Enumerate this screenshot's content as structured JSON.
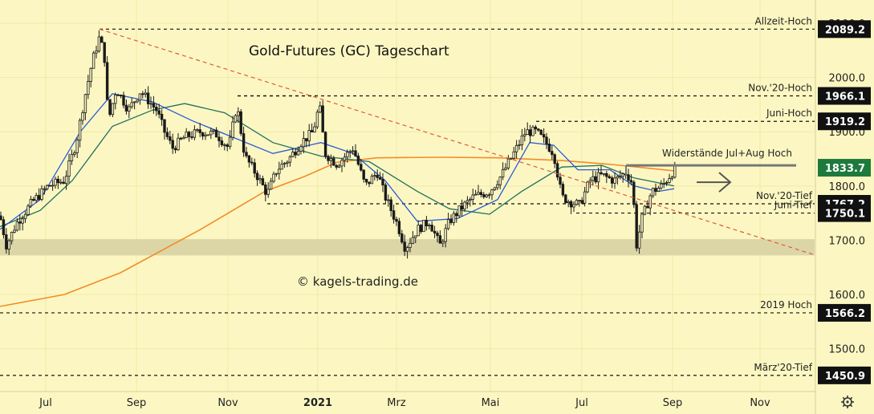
{
  "colors": {
    "background": "#fcf7c2",
    "grid": "#f0e9a8",
    "candle_up": "#1a1a1a",
    "candle_down": "#1a1a1a",
    "ma200": "#f28c28",
    "ma50": "#1f6f5f",
    "ma20": "#2a5bd7",
    "trendline": "#e05a3a",
    "zone": "#d8d1a4",
    "tag_dark": "#111111",
    "tag_green": "#1e7a3c",
    "resistance_line": "#777777"
  },
  "chart_data": {
    "type": "candlestick",
    "title": "Gold-Futures (GC) Tageschart",
    "watermark": "© kagels-trading.de",
    "ylim": [
      1430,
      2100
    ],
    "xlim": [
      0,
      1015
    ],
    "x_ticks": [
      {
        "label": "Jul",
        "x": 57,
        "bold": false
      },
      {
        "label": "Sep",
        "x": 170,
        "bold": false
      },
      {
        "label": "Nov",
        "x": 284,
        "bold": false
      },
      {
        "label": "2021",
        "x": 396,
        "bold": true
      },
      {
        "label": "Mrz",
        "x": 494,
        "bold": false
      },
      {
        "label": "Mai",
        "x": 611,
        "bold": false
      },
      {
        "label": "Jul",
        "x": 725,
        "bold": false
      },
      {
        "label": "Sep",
        "x": 838,
        "bold": false
      },
      {
        "label": "Nov",
        "x": 947,
        "bold": false
      }
    ],
    "y_ticks": [
      "2100.0",
      "2000.0",
      "1900.0",
      "1800.0",
      "1700.0",
      "1600.0",
      "1500.0"
    ],
    "levels": [
      {
        "label": "Allzeit-Hoch",
        "value": 2089.2,
        "tag": "2089.2"
      },
      {
        "label": "Nov.'20-Hoch",
        "value": 1966.1,
        "tag": "1966.1"
      },
      {
        "label": "Juni-Hoch",
        "value": 1919.2,
        "tag": "1919.2"
      },
      {
        "label": "Nov.'20-Tief",
        "value": 1767.2,
        "tag": "1767.2"
      },
      {
        "label": "Juni-Tief",
        "value": 1750.1,
        "tag": "1750.1"
      },
      {
        "label": "2019 Hoch",
        "value": 1566.2,
        "tag": "1566.2"
      },
      {
        "label": "März'20-Tief",
        "value": 1450.9,
        "tag": "1450.9"
      }
    ],
    "current_price": {
      "value": 1833.7,
      "tag": "1833.7"
    },
    "resistance": {
      "label": "Widerstände Jul+Aug Hoch",
      "value": 1838
    },
    "support_zone": {
      "low": 1672,
      "high": 1702
    },
    "trendline": {
      "x0": 124,
      "v0": 2089.2,
      "x1": 1015,
      "v1": 1673
    },
    "ma200": [
      [
        0,
        1578
      ],
      [
        80,
        1600
      ],
      [
        150,
        1640
      ],
      [
        250,
        1720
      ],
      [
        330,
        1790
      ],
      [
        380,
        1818
      ],
      [
        420,
        1844
      ],
      [
        470,
        1852
      ],
      [
        550,
        1853
      ],
      [
        620,
        1852
      ],
      [
        700,
        1847
      ],
      [
        760,
        1840
      ],
      [
        840,
        1828
      ]
    ],
    "ma50": [
      [
        0,
        1725
      ],
      [
        50,
        1755
      ],
      [
        90,
        1810
      ],
      [
        140,
        1910
      ],
      [
        190,
        1940
      ],
      [
        230,
        1952
      ],
      [
        280,
        1935
      ],
      [
        340,
        1880
      ],
      [
        400,
        1855
      ],
      [
        460,
        1845
      ],
      [
        520,
        1790
      ],
      [
        560,
        1758
      ],
      [
        610,
        1748
      ],
      [
        650,
        1790
      ],
      [
        700,
        1835
      ],
      [
        750,
        1838
      ],
      [
        790,
        1815
      ],
      [
        840,
        1800
      ]
    ],
    "ma20": [
      [
        0,
        1720
      ],
      [
        50,
        1775
      ],
      [
        100,
        1900
      ],
      [
        140,
        1970
      ],
      [
        190,
        1955
      ],
      [
        240,
        1920
      ],
      [
        290,
        1890
      ],
      [
        340,
        1860
      ],
      [
        400,
        1880
      ],
      [
        440,
        1860
      ],
      [
        480,
        1810
      ],
      [
        520,
        1735
      ],
      [
        570,
        1740
      ],
      [
        620,
        1775
      ],
      [
        660,
        1880
      ],
      [
        690,
        1875
      ],
      [
        720,
        1830
      ],
      [
        760,
        1830
      ],
      [
        790,
        1800
      ],
      [
        820,
        1790
      ],
      [
        840,
        1795
      ]
    ],
    "price_path": [
      [
        0,
        1745
      ],
      [
        8,
        1690
      ],
      [
        20,
        1730
      ],
      [
        40,
        1770
      ],
      [
        60,
        1800
      ],
      [
        80,
        1810
      ],
      [
        95,
        1880
      ],
      [
        105,
        1960
      ],
      [
        115,
        2030
      ],
      [
        124,
        2075
      ],
      [
        130,
        2040
      ],
      [
        135,
        1920
      ],
      [
        145,
        1980
      ],
      [
        160,
        1940
      ],
      [
        175,
        1975
      ],
      [
        195,
        1940
      ],
      [
        205,
        1900
      ],
      [
        215,
        1870
      ],
      [
        230,
        1890
      ],
      [
        250,
        1900
      ],
      [
        270,
        1895
      ],
      [
        285,
        1870
      ],
      [
        295,
        1950
      ],
      [
        305,
        1855
      ],
      [
        320,
        1820
      ],
      [
        333,
        1785
      ],
      [
        345,
        1830
      ],
      [
        360,
        1850
      ],
      [
        375,
        1880
      ],
      [
        390,
        1900
      ],
      [
        398,
        1950
      ],
      [
        405,
        1860
      ],
      [
        420,
        1840
      ],
      [
        440,
        1870
      ],
      [
        455,
        1800
      ],
      [
        470,
        1825
      ],
      [
        480,
        1780
      ],
      [
        495,
        1730
      ],
      [
        505,
        1685
      ],
      [
        520,
        1720
      ],
      [
        535,
        1735
      ],
      [
        548,
        1690
      ],
      [
        560,
        1735
      ],
      [
        575,
        1760
      ],
      [
        590,
        1780
      ],
      [
        610,
        1790
      ],
      [
        625,
        1820
      ],
      [
        640,
        1860
      ],
      [
        655,
        1900
      ],
      [
        668,
        1900
      ],
      [
        680,
        1880
      ],
      [
        690,
        1860
      ],
      [
        700,
        1780
      ],
      [
        712,
        1770
      ],
      [
        722,
        1765
      ],
      [
        735,
        1810
      ],
      [
        750,
        1820
      ],
      [
        765,
        1810
      ],
      [
        780,
        1825
      ],
      [
        788,
        1805
      ],
      [
        793,
        1690
      ],
      [
        800,
        1740
      ],
      [
        812,
        1790
      ],
      [
        825,
        1800
      ],
      [
        840,
        1830
      ]
    ]
  }
}
